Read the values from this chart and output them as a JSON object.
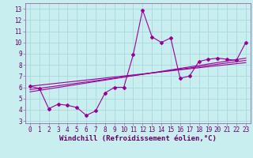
{
  "xlabel": "Windchill (Refroidissement éolien,°C)",
  "bg_color": "#c8eef0",
  "grid_color": "#aad8dc",
  "line_color": "#990099",
  "spine_color": "#9966aa",
  "x_data": [
    0,
    1,
    2,
    3,
    4,
    5,
    6,
    7,
    8,
    9,
    10,
    11,
    12,
    13,
    14,
    15,
    16,
    17,
    18,
    19,
    20,
    21,
    22,
    23
  ],
  "y_data": [
    6.1,
    5.9,
    4.1,
    4.5,
    4.4,
    4.2,
    3.5,
    3.9,
    5.5,
    6.0,
    6.0,
    8.9,
    12.9,
    10.5,
    10.0,
    10.4,
    6.8,
    7.0,
    8.3,
    8.5,
    8.6,
    8.5,
    8.4,
    10.0
  ],
  "reg_lines": [
    {
      "x": [
        0,
        23
      ],
      "y": [
        6.1,
        8.2
      ]
    },
    {
      "x": [
        0,
        23
      ],
      "y": [
        5.8,
        8.4
      ]
    },
    {
      "x": [
        0,
        23
      ],
      "y": [
        5.6,
        8.6
      ]
    }
  ],
  "xlim": [
    -0.5,
    23.5
  ],
  "ylim": [
    2.8,
    13.5
  ],
  "xtick_labels": [
    "0",
    "1",
    "2",
    "3",
    "4",
    "5",
    "6",
    "7",
    "8",
    "9",
    "10",
    "11",
    "12",
    "13",
    "14",
    "15",
    "16",
    "17",
    "18",
    "19",
    "20",
    "21",
    "22",
    "23"
  ],
  "ytick_values": [
    3,
    4,
    5,
    6,
    7,
    8,
    9,
    10,
    11,
    12,
    13
  ],
  "label_fontsize": 6.5,
  "tick_fontsize": 5.5,
  "marker_size": 2.0,
  "line_width": 0.8
}
